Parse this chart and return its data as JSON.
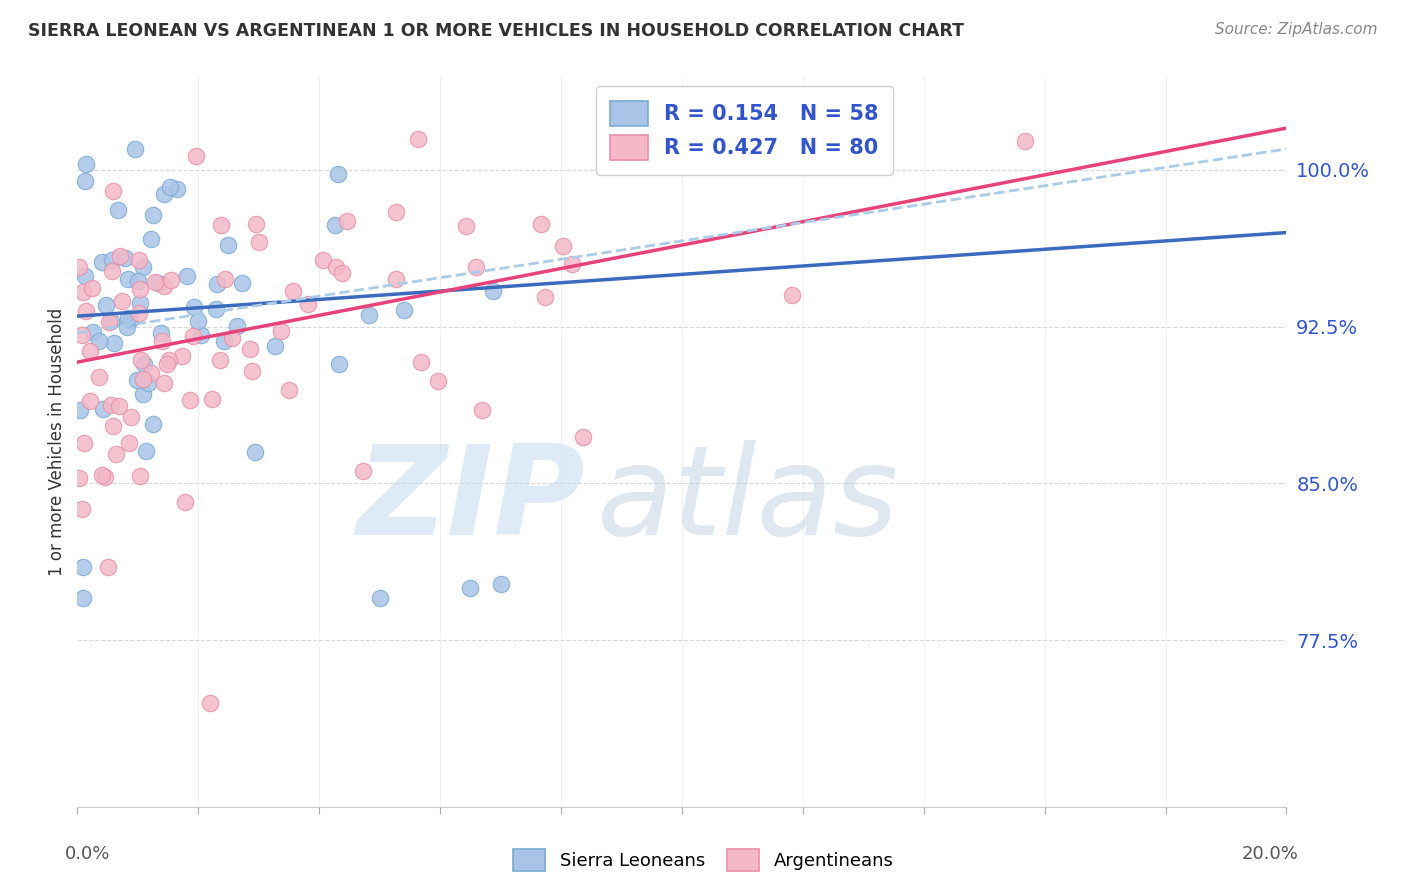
{
  "title": "SIERRA LEONEAN VS ARGENTINEAN 1 OR MORE VEHICLES IN HOUSEHOLD CORRELATION CHART",
  "source": "Source: ZipAtlas.com",
  "ylabel": "1 or more Vehicles in Household",
  "ytick_labels": [
    "100.0%",
    "92.5%",
    "85.0%",
    "77.5%"
  ],
  "ytick_values": [
    1.0,
    0.925,
    0.85,
    0.775
  ],
  "xlim": [
    0.0,
    0.2
  ],
  "ylim": [
    0.695,
    1.045
  ],
  "sierra_R": 0.154,
  "sierra_N": 58,
  "argentina_R": 0.427,
  "argentina_N": 80,
  "blue_color": "#aac4e8",
  "pink_color": "#f4b8c8",
  "blue_edge": "#7aaad4",
  "pink_edge": "#e890a8",
  "trendline_blue": "#3a6bbf",
  "trendline_pink": "#e8427a",
  "trendline_dashed_color": "#aacce8",
  "legend_text_color": "#3355cc",
  "ytick_color": "#3355cc",
  "watermark_zip_color": "#c8ddf0",
  "watermark_atlas_color": "#b8cce0",
  "background_color": "#ffffff",
  "grid_color": "#d8d8d8",
  "xtick_label_color": "#555555",
  "title_color": "#333333",
  "source_color": "#888888",
  "ylabel_color": "#333333"
}
